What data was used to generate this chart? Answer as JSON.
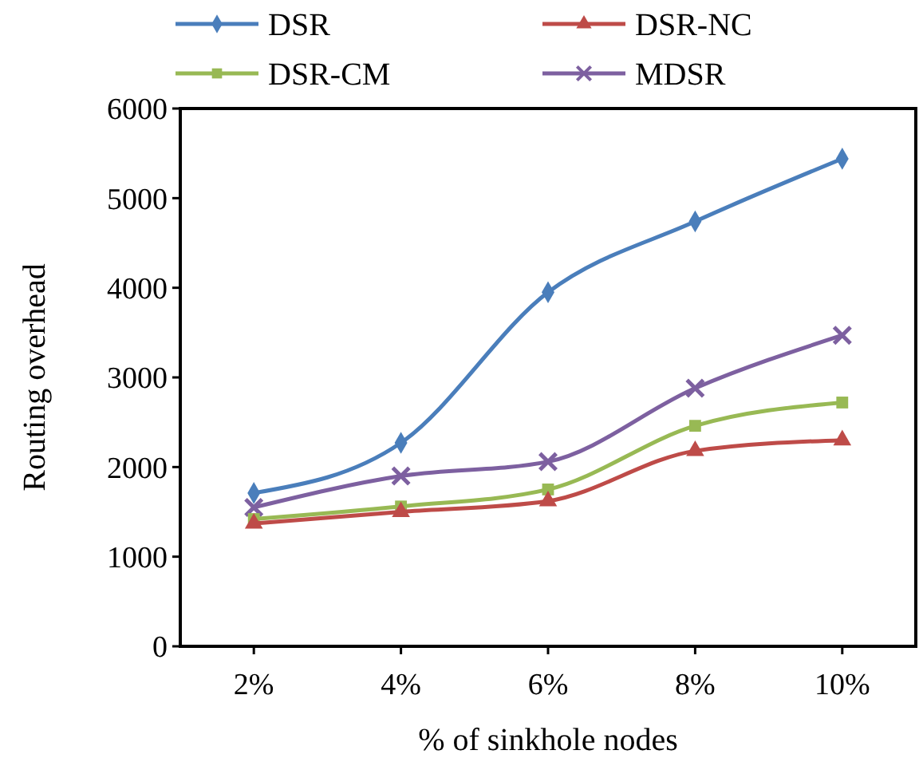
{
  "chart_data": {
    "type": "line",
    "xlabel": "% of sinkhole nodes",
    "ylabel": "Routing overhead",
    "categories": [
      "2%",
      "4%",
      "6%",
      "8%",
      "10%"
    ],
    "ylim": [
      0,
      6000
    ],
    "yticks": [
      0,
      1000,
      2000,
      3000,
      4000,
      5000,
      6000
    ],
    "grid": false,
    "legend": "top",
    "line_style": "solid",
    "series": [
      {
        "name": "DSR",
        "color": "#4a7ebb",
        "marker": "diamond",
        "values": [
          1710,
          2270,
          3950,
          4740,
          5440
        ]
      },
      {
        "name": "DSR-NC",
        "color": "#be4b48",
        "marker": "triangle",
        "values": [
          1370,
          1500,
          1620,
          2180,
          2300
        ]
      },
      {
        "name": "DSR-CM",
        "color": "#98b954",
        "marker": "square",
        "values": [
          1420,
          1560,
          1750,
          2460,
          2720
        ]
      },
      {
        "name": "MDSR",
        "color": "#7d60a0",
        "marker": "cross",
        "values": [
          1550,
          1900,
          2060,
          2880,
          3470
        ]
      }
    ]
  }
}
